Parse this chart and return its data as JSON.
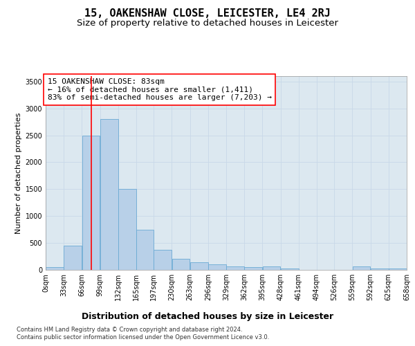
{
  "title1": "15, OAKENSHAW CLOSE, LEICESTER, LE4 2RJ",
  "title2": "Size of property relative to detached houses in Leicester",
  "xlabel": "Distribution of detached houses by size in Leicester",
  "ylabel": "Number of detached properties",
  "annotation_text": "15 OAKENSHAW CLOSE: 83sqm\n← 16% of detached houses are smaller (1,411)\n83% of semi-detached houses are larger (7,203) →",
  "footer1": "Contains HM Land Registry data © Crown copyright and database right 2024.",
  "footer2": "Contains public sector information licensed under the Open Government Licence v3.0.",
  "bin_edges": [
    0,
    33,
    66,
    99,
    132,
    165,
    197,
    230,
    263,
    296,
    329,
    362,
    395,
    428,
    461,
    494,
    526,
    559,
    592,
    625,
    658
  ],
  "bin_labels": [
    "0sqm",
    "33sqm",
    "66sqm",
    "99sqm",
    "132sqm",
    "165sqm",
    "197sqm",
    "230sqm",
    "263sqm",
    "296sqm",
    "329sqm",
    "362sqm",
    "395sqm",
    "428sqm",
    "461sqm",
    "494sqm",
    "526sqm",
    "559sqm",
    "592sqm",
    "625sqm",
    "658sqm"
  ],
  "bar_heights": [
    50,
    450,
    2500,
    2800,
    1500,
    750,
    375,
    200,
    140,
    100,
    60,
    50,
    60,
    30,
    0,
    0,
    0,
    60,
    20,
    20
  ],
  "bar_color": "#b8d0e8",
  "bar_edge_color": "#6aaad4",
  "vline_x": 83,
  "vline_color": "red",
  "vline_lw": 1.2,
  "ylim": [
    0,
    3600
  ],
  "yticks": [
    0,
    500,
    1000,
    1500,
    2000,
    2500,
    3000,
    3500
  ],
  "grid_color": "#c8d8e8",
  "bg_color": "#dce8f0",
  "title1_fontsize": 11,
  "title2_fontsize": 9.5,
  "annotation_fontsize": 8,
  "xlabel_fontsize": 9,
  "ylabel_fontsize": 8,
  "tick_fontsize": 7
}
